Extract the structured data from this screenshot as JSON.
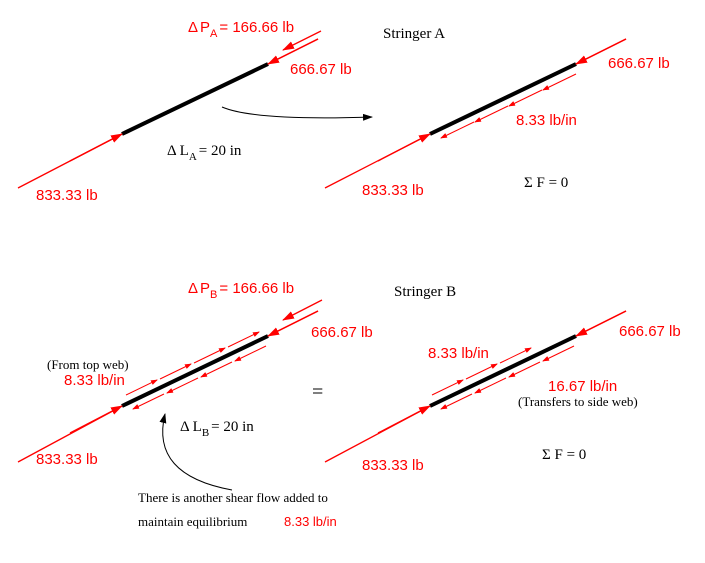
{
  "stringer_a": {
    "title": "Stringer A",
    "delta_p_symbol": "Δ",
    "delta_p_var": "P",
    "delta_p_sub": "A",
    "delta_p_value": "= 166.66 lb",
    "top_load": "666.67 lb",
    "bottom_load": "833.33 lb",
    "delta_l_symbol": "Δ",
    "delta_l_var": "L",
    "delta_l_sub": "A",
    "delta_l_value": "= 20 in",
    "right_top_load": "666.67 lb",
    "right_bottom_load": "833.33 lb",
    "shear_flow": "8.33 lb/in",
    "sum_f": "Σ F = 0"
  },
  "stringer_b": {
    "title": "Stringer B",
    "delta_p_symbol": "Δ",
    "delta_p_var": "P",
    "delta_p_sub": "B",
    "delta_p_value": "= 166.66 lb",
    "top_load": "666.67 lb",
    "bottom_load": "833.33 lb",
    "from_top_web": "(From top web)",
    "left_shear_flow": "8.33 lb/in",
    "delta_l_symbol": "Δ",
    "delta_l_var": "L",
    "delta_l_sub": "B",
    "delta_l_value": "= 20 in",
    "equals": "=",
    "right_top_load": "666.67 lb",
    "right_bottom_load": "833.33 lb",
    "right_upper_shear_flow": "8.33 lb/in",
    "right_lower_shear_flow": "16.67 lb/in",
    "transfers_note": "(Transfers to side web)",
    "sum_f": "Σ F = 0",
    "note_line1": "There is another shear flow added to",
    "note_line2": "maintain equilibrium",
    "note_value": "8.33 lb/in"
  },
  "colors": {
    "force": "#ff0000",
    "member": "#000000"
  }
}
